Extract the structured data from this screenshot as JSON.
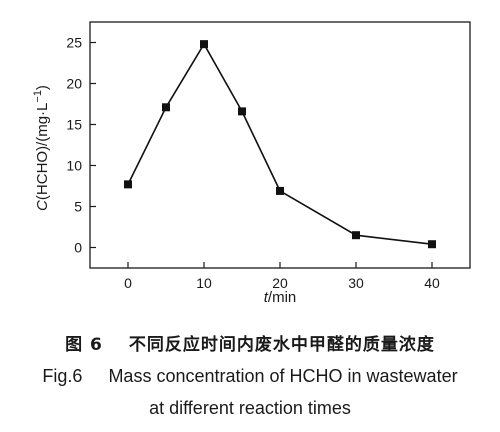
{
  "chart_data": {
    "type": "line",
    "x": [
      0,
      5,
      10,
      15,
      20,
      30,
      40
    ],
    "series": [
      {
        "values": [
          7.7,
          17.1,
          24.8,
          16.6,
          6.9,
          1.5,
          0.4
        ]
      }
    ],
    "xlabel_italic": "t",
    "xlabel_unit": "/min",
    "ylabel_italic": "C",
    "ylabel_rest": "(HCHO)/(mg·L",
    "ylabel_sup": "−1",
    "ylabel_close": ")",
    "xlim": [
      -5,
      45
    ],
    "ylim": [
      -2.5,
      27.5
    ],
    "xticks": [
      0,
      10,
      20,
      30,
      40
    ],
    "yticks": [
      0,
      5,
      10,
      15,
      20,
      25
    ],
    "grid": false,
    "marker": "square",
    "line_color": "#111111"
  },
  "caption": {
    "cn_num": "图 6",
    "cn_text": "不同反应时间内废水中甲醛的质量浓度",
    "en_num": "Fig.6",
    "en_line1": "Mass concentration of HCHO in wastewater",
    "en_line2": "at different reaction times"
  }
}
